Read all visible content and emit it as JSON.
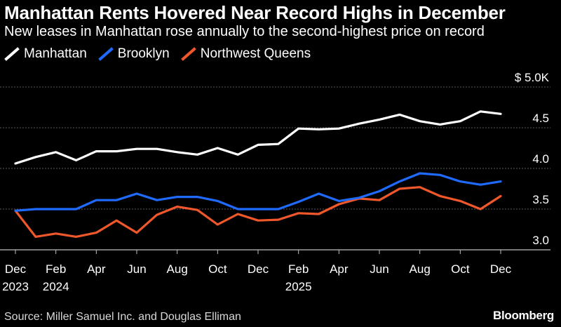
{
  "header": {
    "title": "Manhattan Rents Hovered Near Record Highs in December",
    "subtitle": "New leases in Manhattan rose annually to the second-highest price on record"
  },
  "footer": {
    "source": "Source: Miller Samuel Inc. and Douglas Elliman",
    "brand": "Bloomberg"
  },
  "colors": {
    "background": "#000000",
    "grid": "#5a5a5a",
    "manhattan": "#ffffff",
    "brooklyn": "#1f6bff",
    "queens": "#f0572a"
  },
  "chart_data": {
    "type": "line",
    "title": "Manhattan Rents Hovered Near Record Highs in December",
    "subtitle": "New leases in Manhattan rose annually to the second-highest price on record",
    "xlabel": "",
    "ylabel": "",
    "ylim": [
      3.0,
      5.0
    ],
    "y_ticks": [
      {
        "value": 5.0,
        "label": "$ 5.0K"
      },
      {
        "value": 4.5,
        "label": "4.5"
      },
      {
        "value": 4.0,
        "label": "4.0"
      },
      {
        "value": 3.5,
        "label": "3.5"
      },
      {
        "value": 3.0,
        "label": "3.0"
      }
    ],
    "x": [
      "Dec 2023",
      "Jan 2024",
      "Feb 2024",
      "Mar 2024",
      "Apr 2024",
      "May 2024",
      "Jun 2024",
      "Jul 2024",
      "Aug 2024",
      "Sep 2024",
      "Oct 2024",
      "Nov 2024",
      "Dec 2024",
      "Jan 2025",
      "Feb 2025",
      "Mar 2025",
      "Apr 2025",
      "May 2025",
      "Jun 2025",
      "Jul 2025",
      "Aug 2025",
      "Sep 2025",
      "Oct 2025",
      "Nov 2025",
      "Dec 2025"
    ],
    "x_ticks": [
      {
        "index": 0,
        "line1": "Dec",
        "line2": "2023"
      },
      {
        "index": 2,
        "line1": "Feb",
        "line2": "2024"
      },
      {
        "index": 4,
        "line1": "Apr",
        "line2": ""
      },
      {
        "index": 6,
        "line1": "Jun",
        "line2": ""
      },
      {
        "index": 8,
        "line1": "Aug",
        "line2": ""
      },
      {
        "index": 10,
        "line1": "Oct",
        "line2": ""
      },
      {
        "index": 12,
        "line1": "Dec",
        "line2": ""
      },
      {
        "index": 14,
        "line1": "Feb",
        "line2": "2025"
      },
      {
        "index": 16,
        "line1": "Apr",
        "line2": ""
      },
      {
        "index": 18,
        "line1": "Jun",
        "line2": ""
      },
      {
        "index": 20,
        "line1": "Aug",
        "line2": ""
      },
      {
        "index": 22,
        "line1": "Oct",
        "line2": ""
      },
      {
        "index": 24,
        "line1": "Dec",
        "line2": ""
      }
    ],
    "grid": true,
    "legend_position": "top-left",
    "series": [
      {
        "name": "Manhattan",
        "key": "manhattan",
        "values": [
          4.06,
          4.14,
          4.2,
          4.1,
          4.21,
          4.21,
          4.24,
          4.24,
          4.2,
          4.17,
          4.25,
          4.17,
          4.29,
          4.3,
          4.49,
          4.48,
          4.49,
          4.55,
          4.6,
          4.66,
          4.58,
          4.54,
          4.58,
          4.7,
          4.67
        ]
      },
      {
        "name": "Brooklyn",
        "key": "brooklyn",
        "values": [
          3.48,
          3.5,
          3.5,
          3.5,
          3.61,
          3.61,
          3.69,
          3.61,
          3.65,
          3.65,
          3.6,
          3.5,
          3.5,
          3.5,
          3.59,
          3.69,
          3.6,
          3.64,
          3.72,
          3.84,
          3.94,
          3.92,
          3.84,
          3.8,
          3.84
        ]
      },
      {
        "name": "Northwest Queens",
        "key": "queens",
        "values": [
          3.48,
          3.16,
          3.2,
          3.16,
          3.21,
          3.36,
          3.21,
          3.43,
          3.53,
          3.49,
          3.31,
          3.44,
          3.36,
          3.37,
          3.45,
          3.44,
          3.56,
          3.63,
          3.61,
          3.75,
          3.77,
          3.66,
          3.6,
          3.5,
          3.66
        ]
      }
    ]
  }
}
